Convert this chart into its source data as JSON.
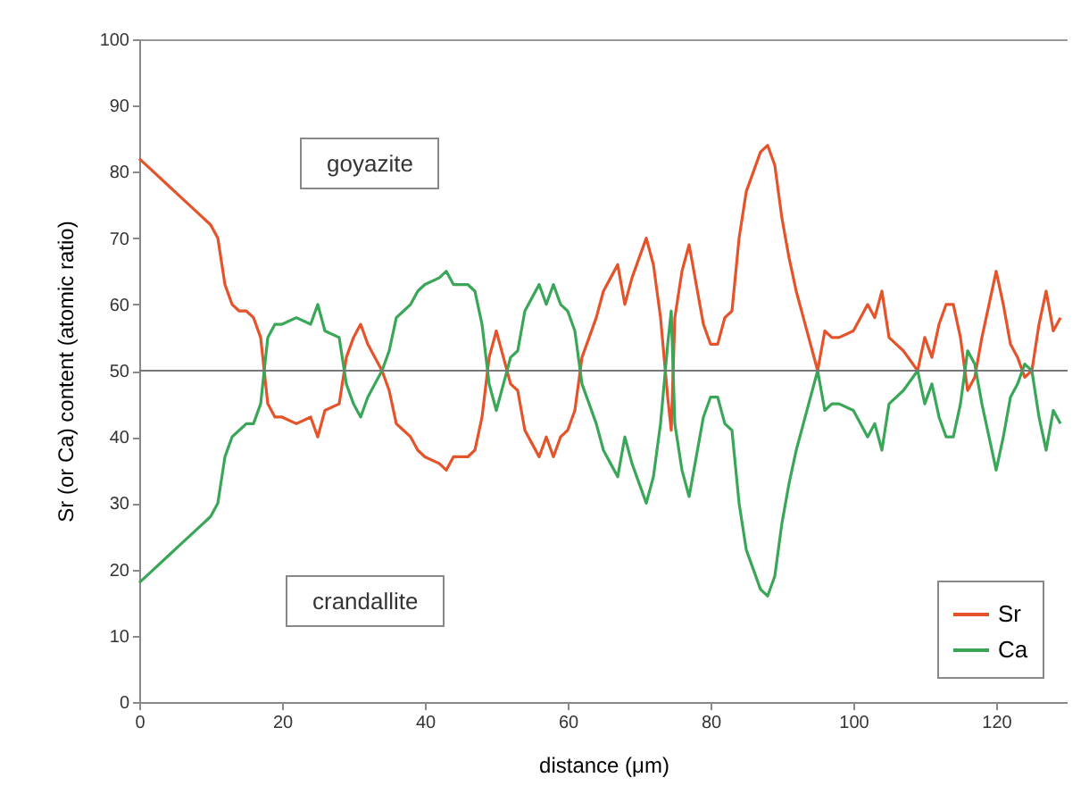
{
  "chart_data": {
    "type": "line",
    "xlabel": "distance (μm)",
    "ylabel": "Sr (or Ca) content (atomic ratio)",
    "x": [
      0,
      2,
      4,
      6,
      8,
      10,
      11,
      12,
      13,
      14,
      15,
      16,
      17,
      18,
      19,
      20,
      22,
      24,
      25,
      26,
      28,
      29,
      30,
      31,
      32,
      33,
      34,
      35,
      36,
      37,
      38,
      39,
      40,
      42,
      43,
      44,
      46,
      47,
      48,
      49,
      50,
      51,
      52,
      53,
      54,
      55,
      56,
      57,
      58,
      59,
      60,
      61,
      62,
      63,
      64,
      65,
      66,
      67,
      68,
      69,
      70,
      71,
      72,
      73,
      74,
      74.5,
      75,
      76,
      77,
      78,
      79,
      80,
      81,
      82,
      83,
      84,
      85,
      86,
      87,
      88,
      89,
      90,
      91,
      92,
      93,
      94,
      95,
      96,
      97,
      98,
      100,
      101,
      102,
      103,
      104,
      105,
      107,
      109,
      110,
      111,
      112,
      113,
      114,
      115,
      116,
      117,
      118,
      119,
      120,
      121,
      122,
      123,
      124,
      125,
      126,
      127,
      128,
      129
    ],
    "series": [
      {
        "name": "Sr",
        "color": "#e5532b",
        "values": [
          82,
          80,
          78,
          76,
          74,
          72,
          70,
          63,
          60,
          59,
          59,
          58,
          55,
          45,
          43,
          43,
          42,
          43,
          40,
          44,
          45,
          52,
          55,
          57,
          54,
          52,
          50,
          47,
          42,
          41,
          40,
          38,
          37,
          36,
          35,
          37,
          37,
          38,
          43,
          52,
          56,
          52,
          48,
          47,
          41,
          39,
          37,
          40,
          37,
          40,
          41,
          44,
          52,
          55,
          58,
          62,
          64,
          66,
          60,
          64,
          67,
          70,
          66,
          58,
          46,
          41,
          58,
          65,
          69,
          63,
          57,
          54,
          54,
          58,
          59,
          70,
          77,
          80,
          83,
          84,
          81,
          73,
          67,
          62,
          58,
          54,
          50,
          56,
          55,
          55,
          56,
          58,
          60,
          58,
          62,
          55,
          53,
          50,
          55,
          52,
          57,
          60,
          60,
          55,
          47,
          49,
          55,
          60,
          65,
          60,
          54,
          52,
          49,
          50,
          57,
          62,
          56,
          58
        ]
      },
      {
        "name": "Ca",
        "color": "#3aa657",
        "values": [
          18,
          20,
          22,
          24,
          26,
          28,
          30,
          37,
          40,
          41,
          42,
          42,
          45,
          55,
          57,
          57,
          58,
          57,
          60,
          56,
          55,
          48,
          45,
          43,
          46,
          48,
          50,
          53,
          58,
          59,
          60,
          62,
          63,
          64,
          65,
          63,
          63,
          62,
          57,
          48,
          44,
          48,
          52,
          53,
          59,
          61,
          63,
          60,
          63,
          60,
          59,
          56,
          48,
          45,
          42,
          38,
          36,
          34,
          40,
          36,
          33,
          30,
          34,
          42,
          54,
          59,
          42,
          35,
          31,
          37,
          43,
          46,
          46,
          42,
          41,
          30,
          23,
          20,
          17,
          16,
          19,
          27,
          33,
          38,
          42,
          46,
          50,
          44,
          45,
          45,
          44,
          42,
          40,
          42,
          38,
          45,
          47,
          50,
          45,
          48,
          43,
          40,
          40,
          45,
          53,
          51,
          45,
          40,
          35,
          40,
          46,
          48,
          51,
          50,
          43,
          38,
          44,
          42
        ]
      }
    ],
    "xlim": [
      0,
      130
    ],
    "xticks": [
      0,
      20,
      40,
      60,
      80,
      100,
      120
    ],
    "ylim": [
      0,
      100
    ],
    "yticks": [
      0,
      10,
      20,
      30,
      40,
      50,
      60,
      70,
      80,
      90,
      100
    ],
    "ref_lines": [
      {
        "axis": "y",
        "value": 50,
        "color": "#777777"
      }
    ],
    "annotations": [
      "goyazite",
      "crandallite"
    ],
    "legend": "bottom right",
    "grid": false,
    "marker": "none",
    "line_style": "solid"
  }
}
